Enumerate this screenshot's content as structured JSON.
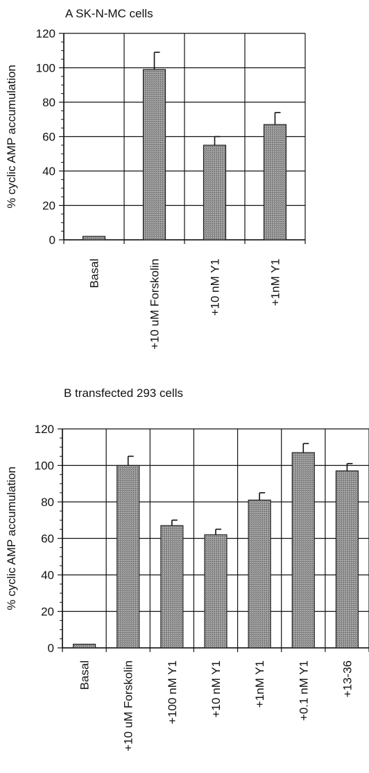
{
  "chart_data": [
    {
      "type": "bar",
      "title": "A   SK-N-MC cells",
      "ylabel": "% cyclic AMP accumulation",
      "xlabel": "",
      "ylim": [
        0,
        120
      ],
      "yticks": [
        "0",
        "20",
        "40",
        "60",
        "80",
        "100",
        "120"
      ],
      "grid": true,
      "categories": [
        "Basal",
        "+10 uM Forskolin",
        "+10 nM Y1",
        "+1nM Y1"
      ],
      "values": [
        2,
        99,
        55,
        67
      ],
      "errors": [
        0,
        10,
        5,
        7
      ]
    },
    {
      "type": "bar",
      "title": "B   transfected 293 cells",
      "ylabel": "% cyclic AMP accumulation",
      "xlabel": "",
      "ylim": [
        0,
        120
      ],
      "yticks": [
        "0",
        "20",
        "40",
        "60",
        "80",
        "100",
        "120"
      ],
      "grid": true,
      "categories": [
        "Basal",
        "+10 uM Forskolin",
        "+100 nM Y1",
        "+10 nM Y1",
        "+1nM Y1",
        "+0.1 nM Y1",
        "+13-36"
      ],
      "values": [
        2,
        100,
        67,
        62,
        81,
        107,
        97
      ],
      "errors": [
        0,
        5,
        3,
        3,
        4,
        5,
        4
      ]
    }
  ]
}
